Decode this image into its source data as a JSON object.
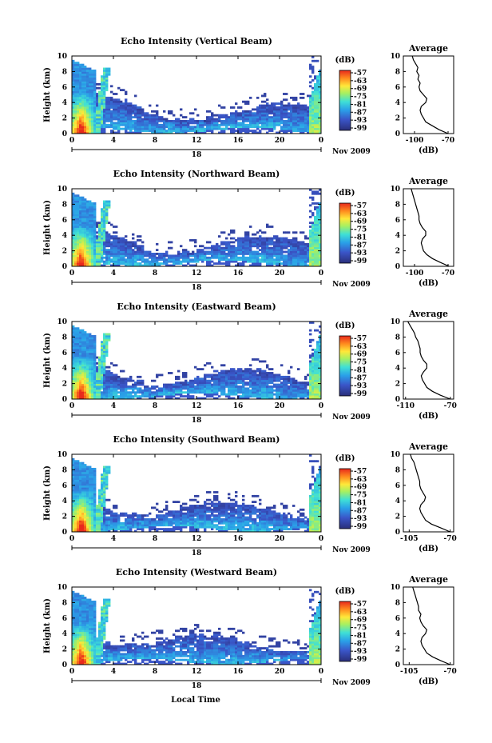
{
  "figure": {
    "xlabel": "Local Time",
    "ylabel": "Height (km)",
    "date_label": "Nov 2009",
    "day_label": "18",
    "cbar_unit": "(dB)",
    "avg_title": "Average",
    "avg_xlabel": "(dB)"
  },
  "chart_data": [
    {
      "type": "heatmap",
      "title": "Echo Intensity (Vertical Beam)",
      "xlim": [
        0,
        24
      ],
      "ylim": [
        0,
        10
      ],
      "xticks": [
        "0",
        "4",
        "8",
        "12",
        "16",
        "20",
        "0"
      ],
      "yticks": [
        "0",
        "2",
        "4",
        "6",
        "8",
        "10"
      ],
      "colorbar_ticks": [
        "-57",
        "-63",
        "-69",
        "-75",
        "-81",
        "-87",
        "-93",
        "-99"
      ],
      "profile": {
        "title": "Average",
        "xlim": [
          -110,
          -65
        ],
        "xticks": [
          "-100",
          "-70"
        ],
        "heights": [
          0,
          0.5,
          1,
          1.5,
          2,
          2.5,
          3,
          3.5,
          4,
          4.5,
          5,
          5.5,
          6,
          6.5,
          7,
          7.5,
          8,
          8.5,
          9,
          9.5,
          10
        ],
        "values": [
          -70,
          -78,
          -84,
          -90,
          -92,
          -94,
          -95,
          -94,
          -90,
          -89,
          -92,
          -95,
          -96,
          -95,
          -97,
          -96,
          -98,
          -97,
          -99,
          -101,
          -102
        ]
      }
    },
    {
      "type": "heatmap",
      "title": "Echo Intensity (Northward Beam)",
      "xlim": [
        0,
        24
      ],
      "ylim": [
        0,
        10
      ],
      "xticks": [
        "0",
        "4",
        "8",
        "12",
        "16",
        "20",
        "0"
      ],
      "yticks": [
        "0",
        "2",
        "4",
        "6",
        "8",
        "10"
      ],
      "colorbar_ticks": [
        "-57",
        "-63",
        "-69",
        "-75",
        "-81",
        "-87",
        "-93",
        "-99"
      ],
      "profile": {
        "title": "Average",
        "xlim": [
          -110,
          -65
        ],
        "xticks": [
          "-100",
          "-70"
        ],
        "heights": [
          0,
          0.5,
          1,
          1.5,
          2,
          2.5,
          3,
          3.5,
          4,
          4.5,
          5,
          5.5,
          6,
          6.5,
          7,
          7.5,
          8,
          8.5,
          9,
          9.5,
          10
        ],
        "values": [
          -69,
          -77,
          -84,
          -89,
          -92,
          -93,
          -94,
          -93,
          -90,
          -90,
          -93,
          -95,
          -96,
          -96,
          -97,
          -98,
          -99,
          -100,
          -101,
          -102,
          -103
        ]
      }
    },
    {
      "type": "heatmap",
      "title": "Echo Intensity (Eastward Beam)",
      "xlim": [
        0,
        24
      ],
      "ylim": [
        0,
        10
      ],
      "xticks": [
        "0",
        "4",
        "8",
        "12",
        "16",
        "20",
        "0"
      ],
      "yticks": [
        "0",
        "2",
        "4",
        "6",
        "8",
        "10"
      ],
      "colorbar_ticks": [
        "-57",
        "-63",
        "-69",
        "-75",
        "-81",
        "-87",
        "-93",
        "-99"
      ],
      "profile": {
        "title": "Average",
        "xlim": [
          -112,
          -67
        ],
        "xticks": [
          "-110",
          "-70"
        ],
        "heights": [
          0,
          0.5,
          1,
          1.5,
          2,
          2.5,
          3,
          3.5,
          4,
          4.5,
          5,
          5.5,
          6,
          6.5,
          7,
          7.5,
          8,
          8.5,
          9,
          9.5,
          10
        ],
        "values": [
          -70,
          -79,
          -86,
          -91,
          -93,
          -95,
          -96,
          -94,
          -91,
          -91,
          -94,
          -96,
          -97,
          -97,
          -98,
          -99,
          -101,
          -102,
          -104,
          -106,
          -108
        ]
      }
    },
    {
      "type": "heatmap",
      "title": "Echo Intensity (Southward Beam)",
      "xlim": [
        0,
        24
      ],
      "ylim": [
        0,
        10
      ],
      "xticks": [
        "0",
        "4",
        "8",
        "12",
        "16",
        "20",
        "0"
      ],
      "yticks": [
        "0",
        "2",
        "4",
        "6",
        "8",
        "10"
      ],
      "colorbar_ticks": [
        "-57",
        "-63",
        "-69",
        "-75",
        "-81",
        "-87",
        "-93",
        "-99"
      ],
      "profile": {
        "title": "Average",
        "xlim": [
          -110,
          -67
        ],
        "xticks": [
          "-105",
          "-70"
        ],
        "heights": [
          0,
          0.5,
          1,
          1.5,
          2,
          2.5,
          3,
          3.5,
          4,
          4.5,
          5,
          5.5,
          6,
          6.5,
          7,
          7.5,
          8,
          8.5,
          9,
          9.5,
          10
        ],
        "values": [
          -70,
          -78,
          -86,
          -91,
          -93,
          -95,
          -96,
          -95,
          -92,
          -91,
          -93,
          -95,
          -96,
          -96,
          -97,
          -98,
          -99,
          -100,
          -101,
          -103,
          -104
        ]
      }
    },
    {
      "type": "heatmap",
      "title": "Echo Intensity (Westward Beam)",
      "xlim": [
        0,
        24
      ],
      "ylim": [
        0,
        10
      ],
      "xticks": [
        "0",
        "4",
        "8",
        "12",
        "16",
        "20",
        "0"
      ],
      "yticks": [
        "0",
        "2",
        "4",
        "6",
        "8",
        "10"
      ],
      "colorbar_ticks": [
        "-57",
        "-63",
        "-69",
        "-75",
        "-81",
        "-87",
        "-93",
        "-99"
      ],
      "profile": {
        "title": "Average",
        "xlim": [
          -110,
          -67
        ],
        "xticks": [
          "-105",
          "-70"
        ],
        "heights": [
          0,
          0.5,
          1,
          1.5,
          2,
          2.5,
          3,
          3.5,
          4,
          4.5,
          5,
          5.5,
          6,
          6.5,
          7,
          7.5,
          8,
          8.5,
          9,
          9.5,
          10
        ],
        "values": [
          -70,
          -78,
          -85,
          -90,
          -92,
          -94,
          -95,
          -94,
          -91,
          -90,
          -93,
          -95,
          -96,
          -95,
          -97,
          -97,
          -98,
          -99,
          -100,
          -101,
          -102
        ]
      }
    }
  ]
}
